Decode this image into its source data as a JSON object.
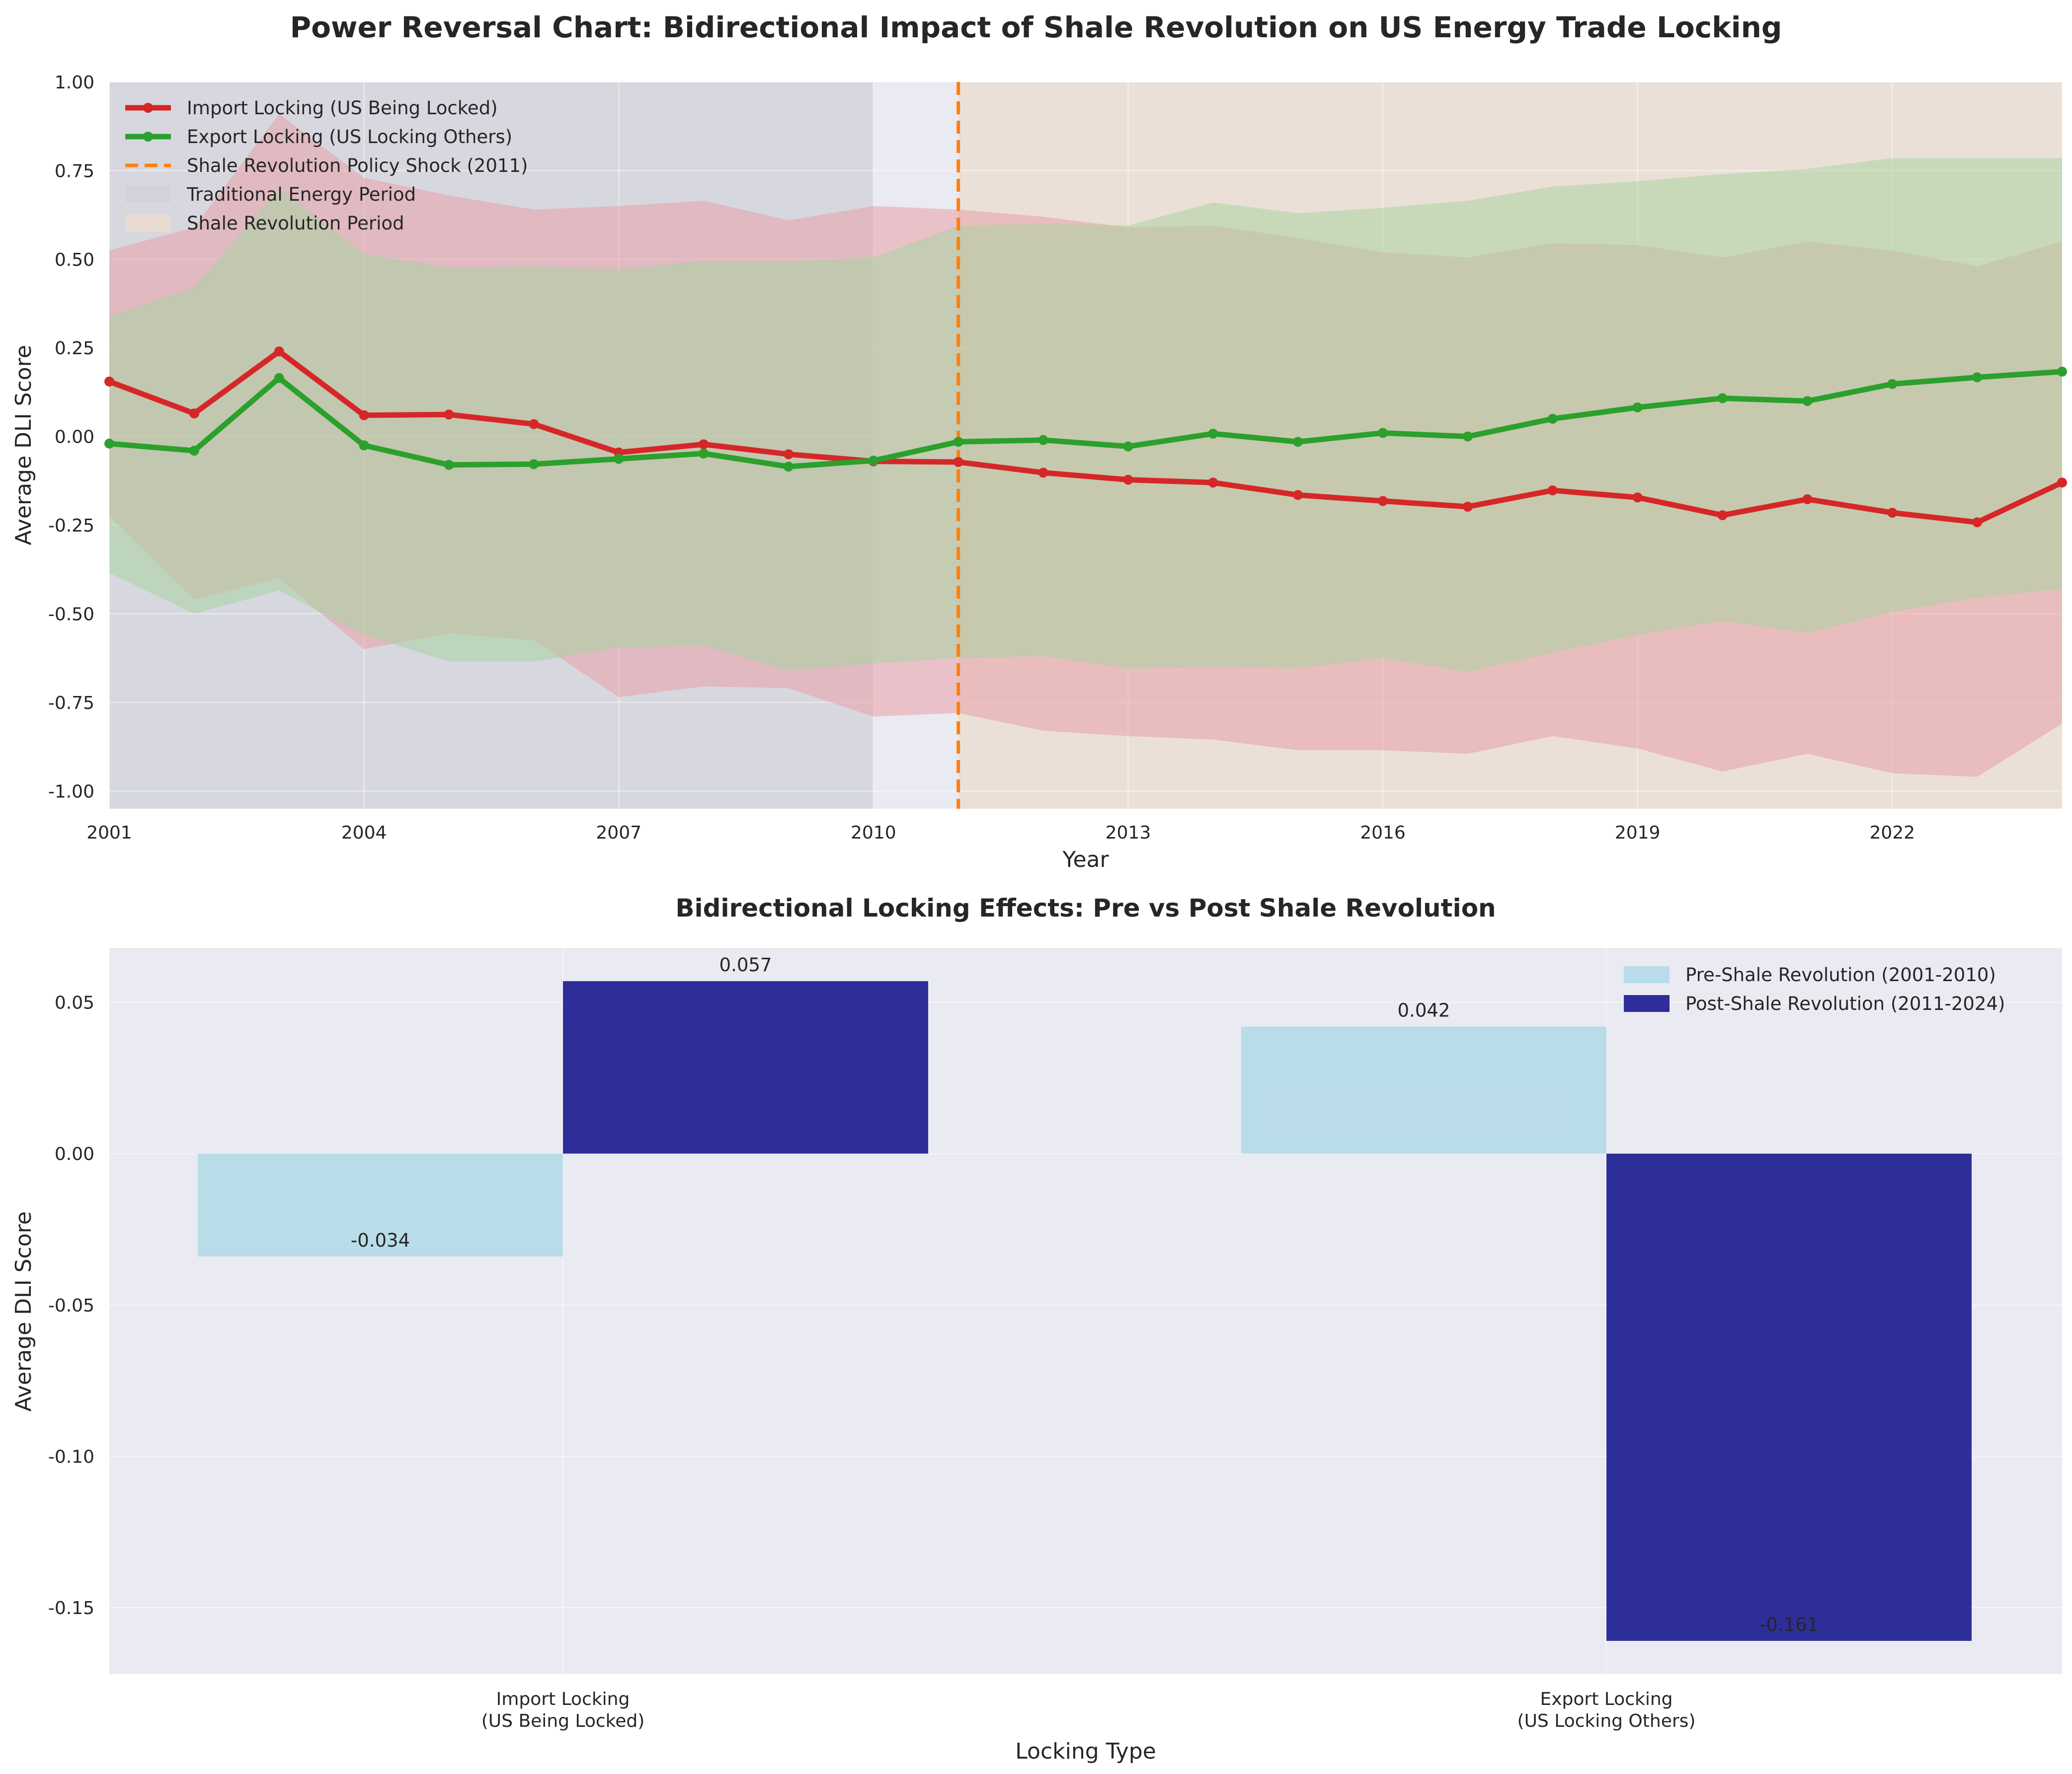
{
  "chart_data": [
    {
      "type": "line",
      "title": "Power Reversal Chart: Bidirectional Impact of Shale Revolution on US Energy Trade Locking",
      "xlabel": "Year",
      "ylabel": "Average DLI Score",
      "xlim": [
        2001,
        2024
      ],
      "ylim": [
        -1.05,
        1.0
      ],
      "xticks": [
        2001,
        2004,
        2007,
        2010,
        2013,
        2016,
        2019,
        2022
      ],
      "yticks": [
        -1.0,
        -0.75,
        -0.5,
        -0.25,
        0.0,
        0.25,
        0.5,
        0.75,
        1.0
      ],
      "ytick_labels": [
        "-1.00",
        "-0.75",
        "-0.50",
        "-0.25",
        "0.00",
        "0.25",
        "0.50",
        "0.75",
        "1.00"
      ],
      "grid": true,
      "legend_position": "top-left",
      "x": [
        2001,
        2002,
        2003,
        2004,
        2005,
        2006,
        2007,
        2008,
        2009,
        2010,
        2011,
        2012,
        2013,
        2014,
        2015,
        2016,
        2017,
        2018,
        2019,
        2020,
        2021,
        2022,
        2023,
        2024
      ],
      "series": [
        {
          "name": "Import Locking (US Being Locked)",
          "color": "#d62728",
          "values": [
            0.155,
            0.065,
            0.24,
            0.06,
            0.062,
            0.035,
            -0.045,
            -0.022,
            -0.05,
            -0.07,
            -0.072,
            -0.102,
            -0.122,
            -0.13,
            -0.165,
            -0.182,
            -0.198,
            -0.152,
            -0.172,
            -0.222,
            -0.177,
            -0.215,
            -0.242,
            -0.13
          ],
          "band_upper": [
            0.525,
            0.59,
            0.91,
            0.73,
            0.68,
            0.64,
            0.65,
            0.665,
            0.61,
            0.65,
            0.64,
            0.62,
            0.59,
            0.595,
            0.56,
            0.52,
            0.505,
            0.545,
            0.54,
            0.505,
            0.55,
            0.525,
            0.48,
            0.55
          ],
          "band_lower": [
            -0.225,
            -0.46,
            -0.4,
            -0.6,
            -0.555,
            -0.575,
            -0.735,
            -0.705,
            -0.71,
            -0.79,
            -0.78,
            -0.83,
            -0.845,
            -0.855,
            -0.885,
            -0.885,
            -0.895,
            -0.845,
            -0.88,
            -0.945,
            -0.895,
            -0.95,
            -0.96,
            -0.81
          ],
          "band_color": "#e8a0a8"
        },
        {
          "name": "Export Locking (US Locking Others)",
          "color": "#2ca02c",
          "values": [
            -0.02,
            -0.04,
            0.165,
            -0.025,
            -0.08,
            -0.078,
            -0.063,
            -0.048,
            -0.085,
            -0.068,
            -0.015,
            -0.01,
            -0.028,
            0.008,
            -0.015,
            0.01,
            0.0,
            0.05,
            0.082,
            0.108,
            0.1,
            0.148,
            0.167,
            0.183
          ],
          "band_upper": [
            0.34,
            0.42,
            0.7,
            0.515,
            0.475,
            0.48,
            0.47,
            0.495,
            0.495,
            0.505,
            0.595,
            0.6,
            0.595,
            0.66,
            0.63,
            0.645,
            0.665,
            0.705,
            0.72,
            0.74,
            0.755,
            0.785,
            0.785,
            0.785
          ],
          "band_lower": [
            -0.385,
            -0.5,
            -0.435,
            -0.56,
            -0.635,
            -0.635,
            -0.595,
            -0.59,
            -0.66,
            -0.64,
            -0.625,
            -0.62,
            -0.655,
            -0.65,
            -0.655,
            -0.625,
            -0.665,
            -0.61,
            -0.56,
            -0.52,
            -0.555,
            -0.495,
            -0.455,
            -0.43
          ],
          "band_color": "#a9d4a0"
        }
      ],
      "annotations": [
        {
          "name": "Shale Revolution Policy Shock (2011)",
          "type": "vline",
          "x": 2011,
          "color": "#ff7f0e",
          "style": "dashed"
        },
        {
          "name": "Traditional Energy Period",
          "type": "span",
          "x_from": 2001,
          "x_to": 2010,
          "color": "#d0d2d8"
        },
        {
          "name": "Shale Revolution Period",
          "type": "span",
          "x_from": 2011,
          "x_to": 2024,
          "color": "#ebdcce"
        }
      ]
    },
    {
      "type": "bar",
      "title": "Bidirectional Locking Effects: Pre vs Post Shale Revolution",
      "xlabel": "Locking Type",
      "ylabel": "Average DLI Score",
      "categories": [
        [
          "Import Locking",
          "(US Being Locked)"
        ],
        [
          "Export Locking",
          "(US Locking Others)"
        ]
      ],
      "ylim": [
        -0.172,
        0.068
      ],
      "yticks": [
        -0.15,
        -0.1,
        -0.05,
        0.0,
        0.05
      ],
      "ytick_labels": [
        "-0.15",
        "-0.10",
        "-0.05",
        "0.00",
        "0.05"
      ],
      "grid": true,
      "legend_position": "top-right",
      "series": [
        {
          "name": "Pre-Shale Revolution (2001-2010)",
          "color": "#add8e6",
          "values": [
            -0.034,
            0.042
          ],
          "labels": [
            "-0.034",
            "0.042"
          ]
        },
        {
          "name": "Post-Shale Revolution (2011-2024)",
          "color": "#1a1a90",
          "values": [
            0.057,
            -0.161
          ],
          "labels": [
            "0.057",
            "-0.161"
          ]
        }
      ]
    }
  ]
}
